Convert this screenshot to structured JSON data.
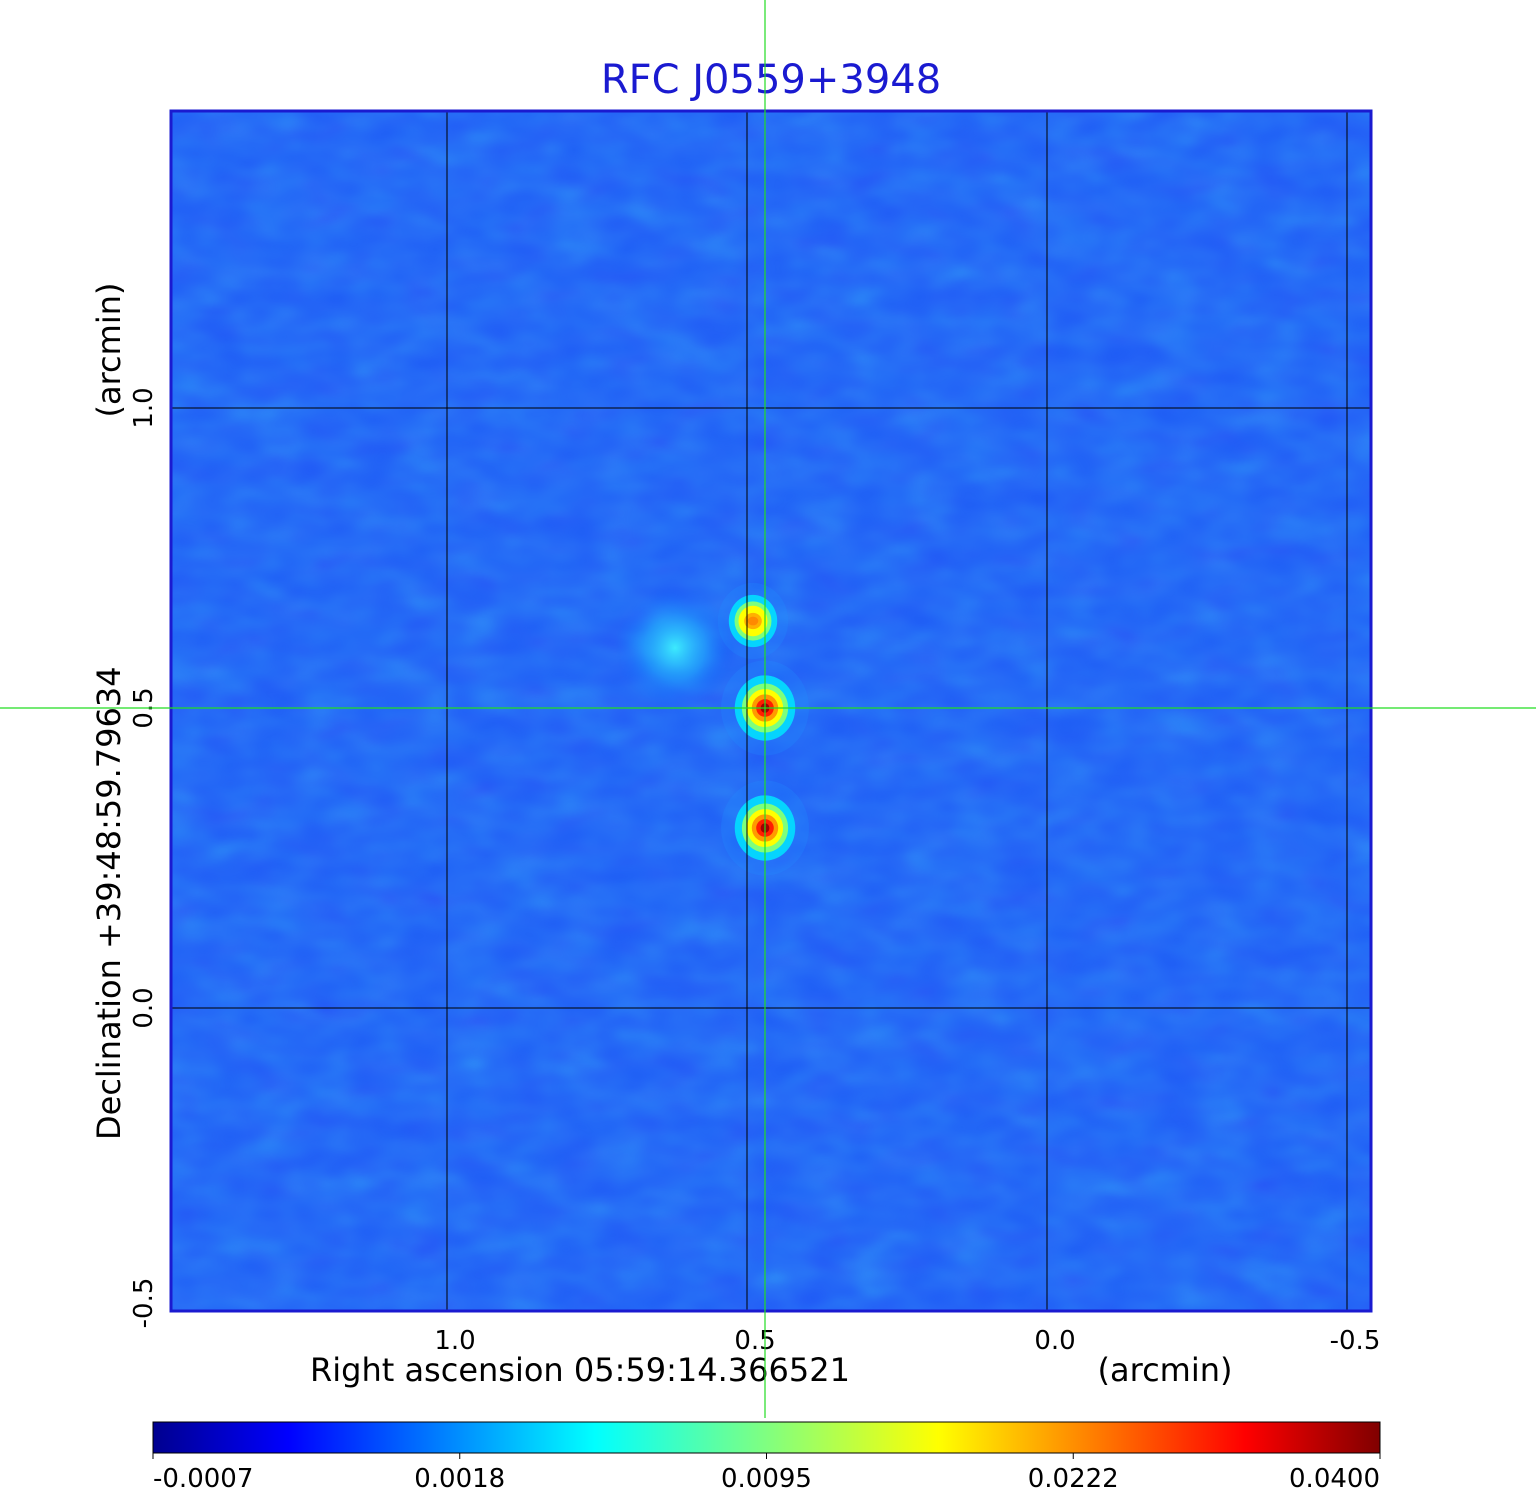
{
  "chart_data": {
    "type": "heatmap",
    "title": "RFC J0559+3948",
    "xlabel": "Right ascension  05:59:14.366521",
    "xunit": "(arcmin)",
    "ylabel": "Declination  +39:48:59.79634",
    "yunit": "(arcmin)",
    "x_axis_reversed": true,
    "xlim": [
      1.46,
      -0.54
    ],
    "ylim": [
      -0.505,
      1.495
    ],
    "x_ticks": [
      1.0,
      0.5,
      0.0,
      -0.5
    ],
    "x_tick_labels": [
      "1.0",
      "0.5",
      "0.0",
      "-0.5"
    ],
    "y_ticks": [
      0.0,
      0.5,
      1.0
    ],
    "y_tick_labels": [
      "0.0",
      "0.5",
      "1.0"
    ],
    "y_extra_tick_label": "-0.5",
    "grid": true,
    "crosshair": {
      "x": 0.47,
      "y": 0.5,
      "color": "#22dd22"
    },
    "colormap": "jet",
    "colorbar_ticks": [
      "-0.0007",
      "0.0018",
      "0.0095",
      "0.0222",
      "0.0400"
    ],
    "sources": [
      {
        "x": 0.49,
        "y": 0.645,
        "peak": 0.022
      },
      {
        "x": 0.47,
        "y": 0.5,
        "peak": 0.04
      },
      {
        "x": 0.47,
        "y": 0.3,
        "peak": 0.04
      },
      {
        "x": 0.62,
        "y": 0.6,
        "peak": 0.003
      }
    ]
  }
}
